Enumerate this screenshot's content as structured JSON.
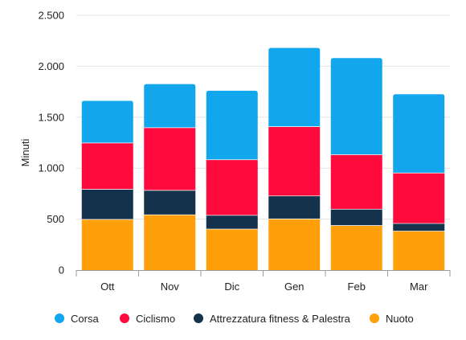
{
  "chart_data": {
    "type": "bar",
    "stacked": true,
    "categories": [
      "Ott",
      "Nov",
      "Dic",
      "Gen",
      "Feb",
      "Mar"
    ],
    "series": [
      {
        "name": "Nuoto",
        "color": "#ff9f0a",
        "values": [
          500,
          545,
          405,
          505,
          440,
          385
        ]
      },
      {
        "name": "Attrezzatura fitness & Palestra",
        "color": "#14324b",
        "values": [
          295,
          240,
          135,
          225,
          160,
          75
        ]
      },
      {
        "name": "Ciclismo",
        "color": "#ff0a3c",
        "values": [
          455,
          615,
          545,
          680,
          535,
          495
        ]
      },
      {
        "name": "Corsa",
        "color": "#12a7ed",
        "values": [
          410,
          425,
          675,
          770,
          945,
          770
        ]
      }
    ],
    "ylabel": "Minuti",
    "xlabel": "",
    "title": "",
    "ylim": [
      0,
      2500
    ],
    "yticks": [
      0,
      500,
      1000,
      1500,
      2000,
      2500
    ],
    "ytick_labels": [
      "0",
      "500",
      "1.000",
      "1.500",
      "2.000",
      "2.500"
    ],
    "grid": true,
    "legend_position": "bottom",
    "legend_order": [
      "Corsa",
      "Ciclismo",
      "Attrezzatura fitness & Palestra",
      "Nuoto"
    ]
  }
}
